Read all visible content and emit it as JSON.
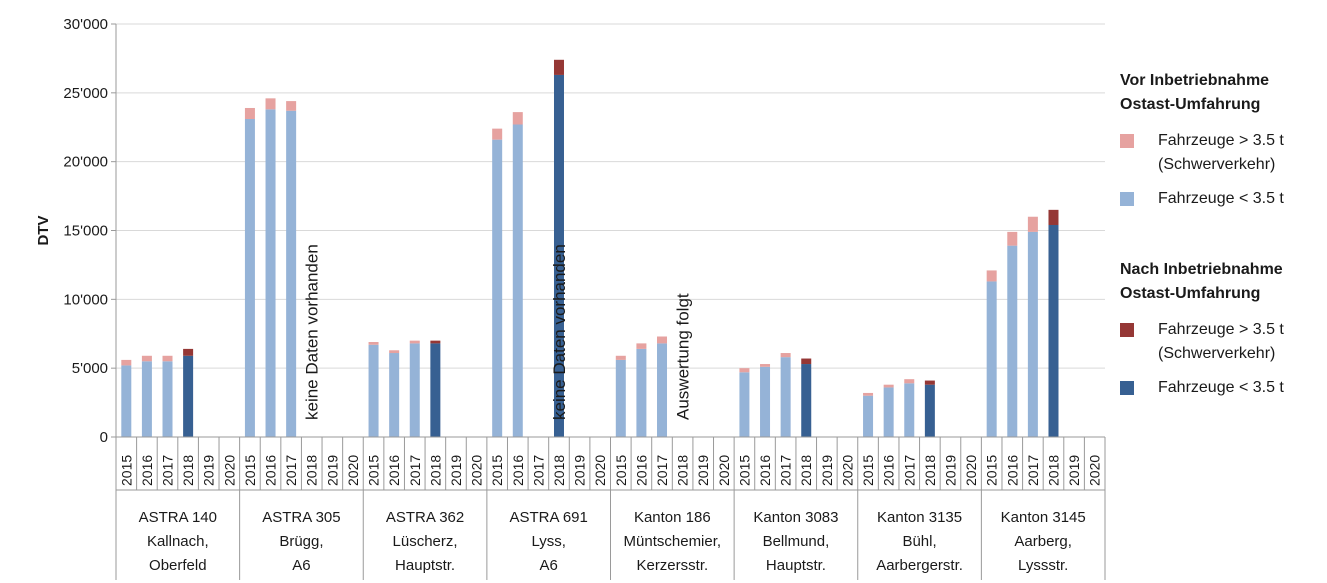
{
  "chart_data": {
    "type": "bar",
    "stacked": true,
    "ylabel": "DTV",
    "ylim": [
      0,
      30000
    ],
    "yticks": [
      0,
      5000,
      10000,
      15000,
      20000,
      25000,
      30000
    ],
    "ytick_labels": [
      "0",
      "5'000",
      "10'000",
      "15'000",
      "20'000",
      "25'000",
      "30'000"
    ],
    "grid": true,
    "legend_position": "right",
    "years": [
      "2015",
      "2016",
      "2017",
      "2018",
      "2019",
      "2020"
    ],
    "legend": [
      {
        "title": [
          "Vor Inbetriebnahme",
          "Ostast-Umfahrung"
        ],
        "items": [
          {
            "key": "before_heavy",
            "label": [
              "Fahrzeuge > 3.5 t",
              "(Schwerverkehr)"
            ],
            "color": "#e6a2a0"
          },
          {
            "key": "before_light",
            "label": [
              "Fahrzeuge < 3.5 t"
            ],
            "color": "#95b3d7"
          }
        ]
      },
      {
        "title": [
          "Nach Inbetriebnahme",
          "Ostast-Umfahrung"
        ],
        "items": [
          {
            "key": "after_heavy",
            "label": [
              "Fahrzeuge > 3.5 t",
              "(Schwerverkehr)"
            ],
            "color": "#953735"
          },
          {
            "key": "after_light",
            "label": [
              "Fahrzeuge < 3.5 t"
            ],
            "color": "#376092"
          }
        ]
      }
    ],
    "groups": [
      {
        "label": [
          "ASTRA 140",
          "Kallnach,",
          "Oberfeld"
        ],
        "bars": [
          {
            "year": "2015",
            "phase": "before",
            "light": 5200,
            "heavy": 400
          },
          {
            "year": "2016",
            "phase": "before",
            "light": 5500,
            "heavy": 400
          },
          {
            "year": "2017",
            "phase": "before",
            "light": 5500,
            "heavy": 400
          },
          {
            "year": "2018",
            "phase": "after",
            "light": 5900,
            "heavy": 500
          }
        ]
      },
      {
        "label": [
          "ASTRA 305",
          "Brügg,",
          "A6"
        ],
        "note": "keine Daten vorhanden",
        "bars": [
          {
            "year": "2015",
            "phase": "before",
            "light": 23100,
            "heavy": 800
          },
          {
            "year": "2016",
            "phase": "before",
            "light": 23800,
            "heavy": 800
          },
          {
            "year": "2017",
            "phase": "before",
            "light": 23700,
            "heavy": 700
          }
        ]
      },
      {
        "label": [
          "ASTRA 362",
          "Lüscherz,",
          "Hauptstr."
        ],
        "bars": [
          {
            "year": "2015",
            "phase": "before",
            "light": 6700,
            "heavy": 200
          },
          {
            "year": "2016",
            "phase": "before",
            "light": 6100,
            "heavy": 200
          },
          {
            "year": "2017",
            "phase": "before",
            "light": 6800,
            "heavy": 200
          },
          {
            "year": "2018",
            "phase": "after",
            "light": 6800,
            "heavy": 200
          }
        ]
      },
      {
        "label": [
          "ASTRA 691",
          "Lyss,",
          "A6"
        ],
        "note": "keine Daten vorhanden",
        "bars": [
          {
            "year": "2015",
            "phase": "before",
            "light": 21600,
            "heavy": 800
          },
          {
            "year": "2016",
            "phase": "before",
            "light": 22700,
            "heavy": 900
          },
          {
            "year": "2018",
            "phase": "after",
            "light": 26300,
            "heavy": 1100
          }
        ]
      },
      {
        "label": [
          "Kanton 186",
          "Müntschemier,",
          "Kerzersstr."
        ],
        "note": "Auswertung folgt",
        "bars": [
          {
            "year": "2015",
            "phase": "before",
            "light": 5600,
            "heavy": 300
          },
          {
            "year": "2016",
            "phase": "before",
            "light": 6400,
            "heavy": 400
          },
          {
            "year": "2017",
            "phase": "before",
            "light": 6800,
            "heavy": 500
          }
        ]
      },
      {
        "label": [
          "Kanton 3083",
          "Bellmund,",
          "Hauptstr."
        ],
        "bars": [
          {
            "year": "2015",
            "phase": "before",
            "light": 4700,
            "heavy": 300
          },
          {
            "year": "2016",
            "phase": "before",
            "light": 5100,
            "heavy": 200
          },
          {
            "year": "2017",
            "phase": "before",
            "light": 5800,
            "heavy": 300
          },
          {
            "year": "2018",
            "phase": "after",
            "light": 5300,
            "heavy": 400
          }
        ]
      },
      {
        "label": [
          "Kanton 3135",
          "Bühl,",
          "Aarbergerstr."
        ],
        "bars": [
          {
            "year": "2015",
            "phase": "before",
            "light": 3000,
            "heavy": 200
          },
          {
            "year": "2016",
            "phase": "before",
            "light": 3600,
            "heavy": 200
          },
          {
            "year": "2017",
            "phase": "before",
            "light": 3900,
            "heavy": 300
          },
          {
            "year": "2018",
            "phase": "after",
            "light": 3800,
            "heavy": 300
          }
        ]
      },
      {
        "label": [
          "Kanton 3145",
          "Aarberg,",
          "Lyssstr."
        ],
        "bars": [
          {
            "year": "2015",
            "phase": "before",
            "light": 11300,
            "heavy": 800
          },
          {
            "year": "2016",
            "phase": "before",
            "light": 13900,
            "heavy": 1000
          },
          {
            "year": "2017",
            "phase": "before",
            "light": 14900,
            "heavy": 1100
          },
          {
            "year": "2018",
            "phase": "after",
            "light": 15400,
            "heavy": 1100
          }
        ]
      }
    ]
  }
}
